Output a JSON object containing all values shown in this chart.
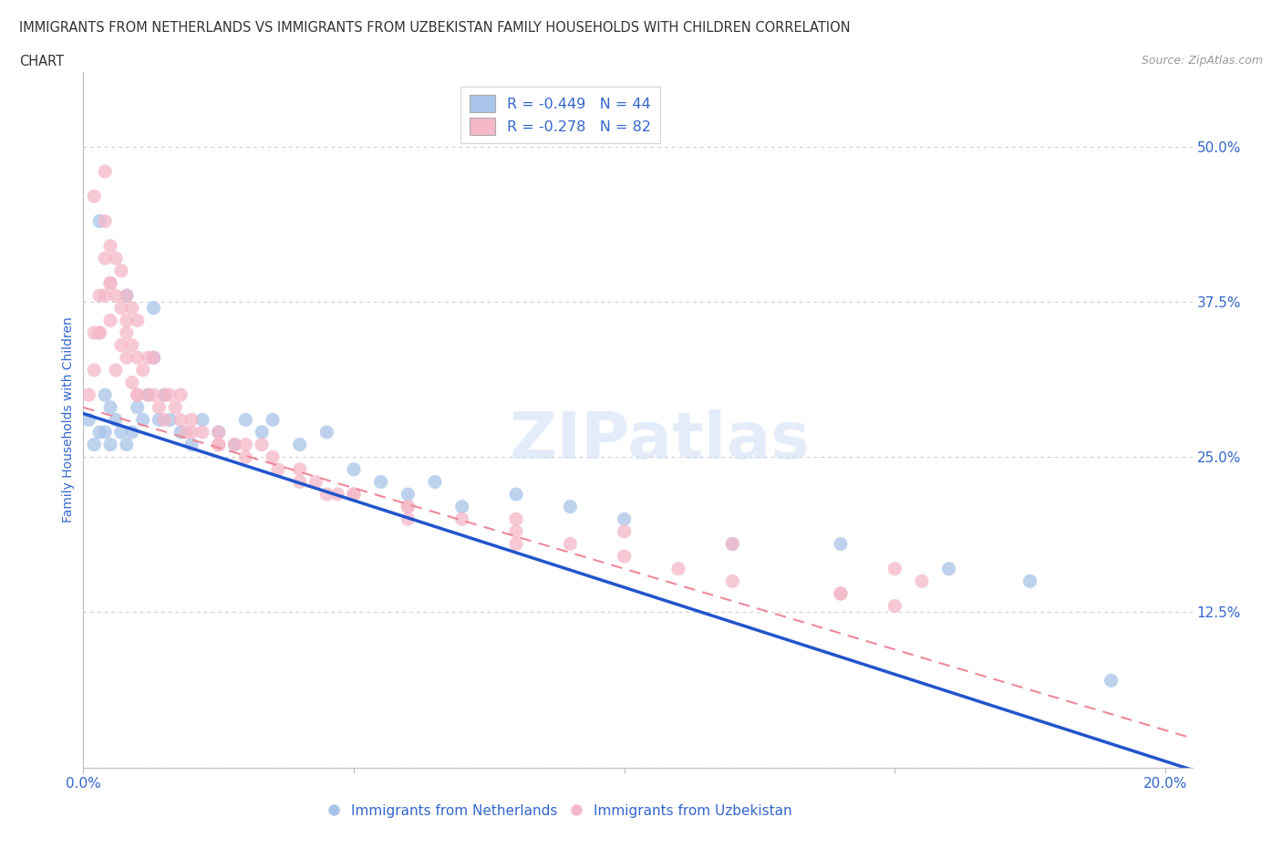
{
  "title_line1": "IMMIGRANTS FROM NETHERLANDS VS IMMIGRANTS FROM UZBEKISTAN FAMILY HOUSEHOLDS WITH CHILDREN CORRELATION",
  "title_line2": "CHART",
  "source": "Source: ZipAtlas.com",
  "ylabel": "Family Households with Children",
  "watermark": "ZIPatlas",
  "nl_color": "#a8c4e8",
  "uz_color": "#f5b8c8",
  "nl_line_color": "#2255cc",
  "uz_line_color": "#ee8899",
  "text_color": "#3366cc",
  "background_color": "#ffffff",
  "grid_color": "#cccccc",
  "nl_scatter_x": [
    0.001,
    0.002,
    0.003,
    0.004,
    0.004,
    0.005,
    0.005,
    0.006,
    0.007,
    0.008,
    0.009,
    0.01,
    0.011,
    0.012,
    0.013,
    0.014,
    0.015,
    0.016,
    0.018,
    0.02,
    0.022,
    0.025,
    0.028,
    0.03,
    0.033,
    0.035,
    0.04,
    0.045,
    0.05,
    0.055,
    0.06,
    0.065,
    0.07,
    0.08,
    0.09,
    0.1,
    0.12,
    0.14,
    0.16,
    0.175,
    0.003,
    0.008,
    0.013,
    0.19
  ],
  "nl_scatter_y": [
    0.28,
    0.26,
    0.27,
    0.3,
    0.27,
    0.29,
    0.26,
    0.28,
    0.27,
    0.26,
    0.27,
    0.29,
    0.28,
    0.3,
    0.33,
    0.28,
    0.3,
    0.28,
    0.27,
    0.26,
    0.28,
    0.27,
    0.26,
    0.28,
    0.27,
    0.28,
    0.26,
    0.27,
    0.24,
    0.23,
    0.22,
    0.23,
    0.21,
    0.22,
    0.21,
    0.2,
    0.18,
    0.18,
    0.16,
    0.15,
    0.44,
    0.38,
    0.37,
    0.07
  ],
  "uz_scatter_x": [
    0.001,
    0.002,
    0.002,
    0.003,
    0.003,
    0.004,
    0.004,
    0.004,
    0.005,
    0.005,
    0.005,
    0.006,
    0.006,
    0.007,
    0.007,
    0.007,
    0.008,
    0.008,
    0.008,
    0.009,
    0.009,
    0.009,
    0.01,
    0.01,
    0.01,
    0.011,
    0.012,
    0.013,
    0.013,
    0.014,
    0.015,
    0.016,
    0.017,
    0.018,
    0.019,
    0.02,
    0.022,
    0.025,
    0.028,
    0.03,
    0.033,
    0.036,
    0.04,
    0.043,
    0.047,
    0.05,
    0.06,
    0.07,
    0.08,
    0.09,
    0.1,
    0.12,
    0.14,
    0.15,
    0.003,
    0.006,
    0.01,
    0.015,
    0.02,
    0.025,
    0.03,
    0.04,
    0.05,
    0.06,
    0.08,
    0.1,
    0.12,
    0.15,
    0.002,
    0.005,
    0.008,
    0.012,
    0.018,
    0.025,
    0.035,
    0.045,
    0.06,
    0.08,
    0.11,
    0.14,
    0.004,
    0.155
  ],
  "uz_scatter_y": [
    0.3,
    0.35,
    0.32,
    0.38,
    0.35,
    0.44,
    0.41,
    0.38,
    0.42,
    0.39,
    0.36,
    0.41,
    0.38,
    0.4,
    0.37,
    0.34,
    0.38,
    0.35,
    0.33,
    0.37,
    0.34,
    0.31,
    0.36,
    0.33,
    0.3,
    0.32,
    0.3,
    0.33,
    0.3,
    0.29,
    0.3,
    0.3,
    0.29,
    0.28,
    0.27,
    0.28,
    0.27,
    0.26,
    0.26,
    0.26,
    0.26,
    0.24,
    0.24,
    0.23,
    0.22,
    0.22,
    0.21,
    0.2,
    0.19,
    0.18,
    0.17,
    0.15,
    0.14,
    0.13,
    0.35,
    0.32,
    0.3,
    0.28,
    0.27,
    0.26,
    0.25,
    0.23,
    0.22,
    0.21,
    0.2,
    0.19,
    0.18,
    0.16,
    0.46,
    0.39,
    0.36,
    0.33,
    0.3,
    0.27,
    0.25,
    0.22,
    0.2,
    0.18,
    0.16,
    0.14,
    0.48,
    0.15
  ]
}
